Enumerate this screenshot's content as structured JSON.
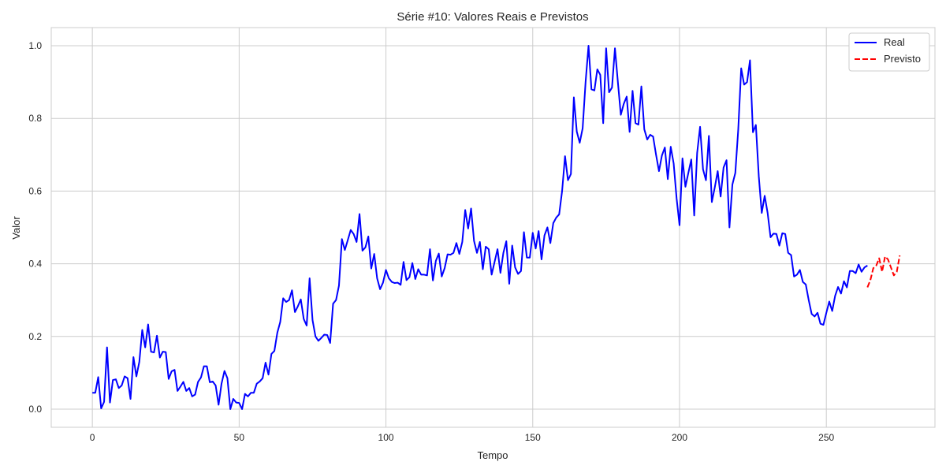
{
  "chart_data": {
    "type": "line",
    "title": "Série #10: Valores Reais e Previstos",
    "xlabel": "Tempo",
    "ylabel": "Valor",
    "xlim": [
      -14,
      287
    ],
    "ylim": [
      -0.05,
      1.05
    ],
    "xticks": [
      0,
      50,
      100,
      150,
      200,
      250
    ],
    "yticks": [
      0.0,
      0.2,
      0.4,
      0.6,
      0.8,
      1.0
    ],
    "xtick_labels": [
      "0",
      "50",
      "100",
      "150",
      "200",
      "250"
    ],
    "ytick_labels": [
      "0.0",
      "0.2",
      "0.4",
      "0.6",
      "0.8",
      "1.0"
    ],
    "grid": true,
    "legend_position": "top-right",
    "series": [
      {
        "name": "Real",
        "color": "#0000ff",
        "style": "solid",
        "x_start": 0,
        "values": [
          0.045,
          0.045,
          0.088,
          0.002,
          0.02,
          0.17,
          0.018,
          0.08,
          0.082,
          0.058,
          0.065,
          0.09,
          0.085,
          0.028,
          0.143,
          0.09,
          0.13,
          0.218,
          0.17,
          0.233,
          0.158,
          0.156,
          0.202,
          0.142,
          0.158,
          0.157,
          0.083,
          0.104,
          0.108,
          0.05,
          0.062,
          0.075,
          0.05,
          0.058,
          0.035,
          0.04,
          0.075,
          0.087,
          0.118,
          0.118,
          0.074,
          0.076,
          0.065,
          0.012,
          0.07,
          0.105,
          0.085,
          0.0,
          0.028,
          0.018,
          0.017,
          0.0,
          0.042,
          0.035,
          0.045,
          0.045,
          0.07,
          0.076,
          0.085,
          0.128,
          0.095,
          0.152,
          0.16,
          0.21,
          0.24,
          0.305,
          0.295,
          0.3,
          0.327,
          0.267,
          0.283,
          0.302,
          0.248,
          0.23,
          0.36,
          0.245,
          0.2,
          0.188,
          0.196,
          0.205,
          0.204,
          0.182,
          0.29,
          0.3,
          0.34,
          0.468,
          0.438,
          0.465,
          0.493,
          0.482,
          0.46,
          0.537,
          0.436,
          0.445,
          0.475,
          0.387,
          0.427,
          0.36,
          0.33,
          0.348,
          0.383,
          0.36,
          0.35,
          0.347,
          0.348,
          0.342,
          0.405,
          0.355,
          0.363,
          0.402,
          0.358,
          0.385,
          0.37,
          0.37,
          0.368,
          0.44,
          0.354,
          0.408,
          0.428,
          0.365,
          0.388,
          0.426,
          0.425,
          0.43,
          0.457,
          0.427,
          0.46,
          0.548,
          0.497,
          0.552,
          0.463,
          0.43,
          0.46,
          0.385,
          0.447,
          0.44,
          0.37,
          0.405,
          0.44,
          0.375,
          0.43,
          0.462,
          0.345,
          0.45,
          0.39,
          0.372,
          0.38,
          0.487,
          0.417,
          0.417,
          0.485,
          0.442,
          0.49,
          0.412,
          0.478,
          0.5,
          0.457,
          0.512,
          0.527,
          0.536,
          0.6,
          0.696,
          0.63,
          0.647,
          0.858,
          0.764,
          0.733,
          0.773,
          0.9,
          1.0,
          0.88,
          0.877,
          0.935,
          0.92,
          0.787,
          0.993,
          0.872,
          0.885,
          0.993,
          0.9,
          0.81,
          0.84,
          0.86,
          0.763,
          0.876,
          0.787,
          0.783,
          0.888,
          0.77,
          0.742,
          0.755,
          0.75,
          0.7,
          0.655,
          0.698,
          0.72,
          0.633,
          0.722,
          0.676,
          0.58,
          0.506,
          0.69,
          0.612,
          0.65,
          0.687,
          0.533,
          0.705,
          0.777,
          0.66,
          0.63,
          0.752,
          0.57,
          0.61,
          0.655,
          0.585,
          0.665,
          0.685,
          0.5,
          0.618,
          0.65,
          0.77,
          0.938,
          0.893,
          0.9,
          0.96,
          0.762,
          0.782,
          0.64,
          0.54,
          0.587,
          0.54,
          0.473,
          0.483,
          0.482,
          0.45,
          0.484,
          0.482,
          0.43,
          0.424,
          0.365,
          0.37,
          0.383,
          0.35,
          0.343,
          0.3,
          0.262,
          0.255,
          0.265,
          0.235,
          0.232,
          0.265,
          0.296,
          0.27,
          0.312,
          0.336,
          0.318,
          0.352,
          0.335,
          0.38,
          0.38,
          0.374,
          0.398,
          0.378,
          0.39,
          0.395
        ]
      },
      {
        "name": "Previsto",
        "color": "#ff0000",
        "style": "dashed",
        "x_start": 264,
        "values": [
          0.335,
          0.355,
          0.388,
          0.395,
          0.415,
          0.378,
          0.42,
          0.412,
          0.39,
          0.368,
          0.378,
          0.423
        ]
      }
    ]
  }
}
